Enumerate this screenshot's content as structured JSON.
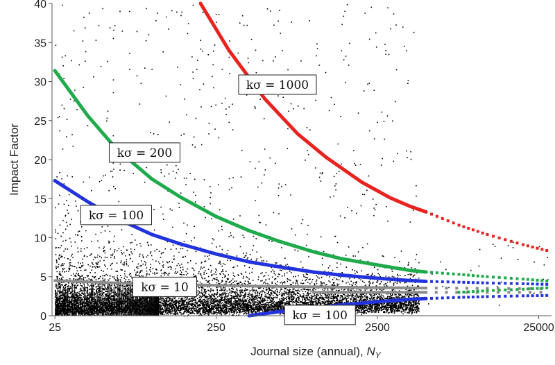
{
  "chart_data": {
    "type": "scatter",
    "title": "",
    "xlabel": "Journal size (annual), ",
    "xlabel_var": "N",
    "xlabel_sub": "Y",
    "ylabel": "Impact Factor",
    "x_scale": "log",
    "xlim": [
      24,
      30000
    ],
    "ylim": [
      0,
      40
    ],
    "x_ticks": [
      {
        "value": 25,
        "label": "25"
      },
      {
        "value": 250,
        "label": "250"
      },
      {
        "value": 2500,
        "label": "2500"
      },
      {
        "value": 25000,
        "label": "25000"
      }
    ],
    "y_ticks": [
      {
        "value": 0,
        "label": "0"
      },
      {
        "value": 5,
        "label": "5"
      },
      {
        "value": 10,
        "label": "10"
      },
      {
        "value": 15,
        "label": "15"
      },
      {
        "value": 20,
        "label": "20"
      },
      {
        "value": 25,
        "label": "25"
      },
      {
        "value": 30,
        "label": "30"
      },
      {
        "value": 35,
        "label": "35"
      },
      {
        "value": 40,
        "label": "40"
      }
    ],
    "grid": false,
    "legend": "none",
    "scatter_description": "approximately 12000 journals, dense below impact factor 5 and sparse above",
    "series": [
      {
        "k_sigma": 1000,
        "side": "upper",
        "color": "#e8231f",
        "x": [
          200,
          300,
          500,
          800,
          1200,
          2000,
          3000,
          4000,
          5000,
          8000,
          12000,
          20000,
          30000
        ],
        "y": [
          40.8,
          34.0,
          27.8,
          23.3,
          20.3,
          17.1,
          15.1,
          14.0,
          13.3,
          11.6,
          10.4,
          9.1,
          8.2
        ]
      },
      {
        "k_sigma": 200,
        "side": "upper",
        "color": "#1faa4c",
        "x": [
          25,
          40,
          60,
          100,
          150,
          250,
          400,
          600,
          1000,
          1500,
          2500,
          4000,
          5000,
          8000,
          12000,
          20000,
          30000
        ],
        "y": [
          31.4,
          25.6,
          21.4,
          17.5,
          15.2,
          12.7,
          10.9,
          9.6,
          8.2,
          7.3,
          6.5,
          5.8,
          5.6,
          5.3,
          5.0,
          4.7,
          4.4
        ]
      },
      {
        "k_sigma": 100,
        "side": "upper",
        "color": "#2233dd",
        "x": [
          25,
          40,
          60,
          100,
          150,
          250,
          400,
          600,
          1000,
          1500,
          2500,
          4000,
          5000,
          8000,
          12000,
          20000,
          30000
        ],
        "y": [
          17.3,
          14.6,
          12.5,
          10.4,
          9.2,
          7.9,
          6.9,
          6.3,
          5.6,
          5.2,
          4.8,
          4.5,
          4.4,
          4.3,
          4.2,
          4.1,
          4.0
        ]
      },
      {
        "k_sigma": 10,
        "side": "upper",
        "color": "#8c8c8c",
        "x": [
          25,
          60,
          150,
          400,
          1000,
          2500,
          5000,
          12000,
          30000
        ],
        "y": [
          4.5,
          4.2,
          4.0,
          3.8,
          3.7,
          3.6,
          3.55,
          3.5,
          3.45
        ]
      },
      {
        "k_sigma": 10,
        "side": "lower",
        "color": "#8c8c8c",
        "x": [
          1000,
          2500,
          5000,
          12000,
          30000
        ],
        "y": [
          3.0,
          3.0,
          3.0,
          3.0,
          3.0
        ]
      },
      {
        "k_sigma": 100,
        "side": "lower",
        "color": "#2233dd",
        "x": [
          400,
          600,
          1000,
          1500,
          2500,
          4000,
          5000,
          8000,
          12000,
          20000,
          30000
        ],
        "y": [
          0.0,
          0.5,
          1.0,
          1.4,
          1.8,
          2.1,
          2.2,
          2.35,
          2.45,
          2.55,
          2.6
        ]
      },
      {
        "k_sigma": 200,
        "side": "lower",
        "color": "#1faa4c",
        "x": [
          8000,
          12000,
          20000,
          30000
        ],
        "y": [
          3.0,
          3.2,
          3.4,
          3.6
        ]
      }
    ],
    "solid_until_x": 5000,
    "annotations": [
      {
        "name": "k-sigma-1000-label",
        "text": "kσ = 1000",
        "x": 600,
        "y": 29.6
      },
      {
        "name": "k-sigma-200-label",
        "text": "kσ = 200",
        "x": 90,
        "y": 20.9
      },
      {
        "name": "k-sigma-100-upper-label",
        "text": "kσ = 100",
        "x": 60,
        "y": 12.9
      },
      {
        "name": "k-sigma-10-label",
        "text": "kσ = 10",
        "x": 120,
        "y": 3.7
      },
      {
        "name": "k-sigma-100-lower-label",
        "text": "kσ = 100",
        "x": 1100,
        "y": 0.1
      }
    ]
  }
}
